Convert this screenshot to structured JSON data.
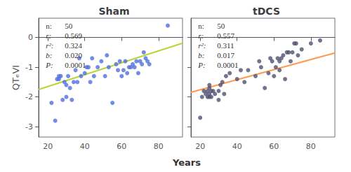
{
  "chart_data": [
    {
      "type": "scatter",
      "title": "Sham",
      "xlabel": "Years",
      "ylabel": "QTₑVI",
      "xlim": [
        15,
        93
      ],
      "ylim": [
        -3.35,
        0.65
      ],
      "xticks": [
        20,
        40,
        60,
        80
      ],
      "yticks": [
        -3,
        -2,
        -1,
        0
      ],
      "grid": false,
      "annotations": [
        "n: 50",
        "r: 0.569",
        "r²: 0.324",
        "b: 0.020",
        "P: 0.0001"
      ],
      "series": [
        {
          "type": "scatter",
          "x": [
            22,
            24,
            25,
            26,
            26,
            27,
            28,
            29,
            30,
            30,
            31,
            32,
            33,
            34,
            35,
            36,
            37,
            38,
            40,
            41,
            42,
            43,
            44,
            45,
            47,
            49,
            51,
            52,
            53,
            55,
            57,
            58,
            59,
            60,
            61,
            62,
            63,
            64,
            65,
            66,
            67,
            68,
            69,
            70,
            71,
            72,
            73,
            74,
            75,
            85
          ],
          "values": [
            -2.2,
            -2.8,
            -1.4,
            -1.4,
            -1.3,
            -1.3,
            -2.1,
            -1.5,
            -1.6,
            -2.0,
            -1.3,
            -1.7,
            -2.1,
            -1.5,
            -1.1,
            -1.5,
            -0.7,
            -1.3,
            -1.2,
            -1.0,
            -1.0,
            -1.5,
            -0.7,
            -1.3,
            -1.0,
            -0.8,
            -1.3,
            -0.6,
            -1.0,
            -2.2,
            -0.9,
            -1.1,
            -0.8,
            -1.3,
            -1.1,
            -0.8,
            -1.2,
            -1.0,
            -1.0,
            -0.9,
            -1.0,
            -0.8,
            -1.2,
            -0.8,
            -0.9,
            -0.5,
            -0.7,
            -0.8,
            -0.9,
            0.4
          ]
        },
        {
          "type": "line",
          "x": [
            15,
            93
          ],
          "values": [
            -1.75,
            -0.19
          ]
        }
      ]
    },
    {
      "type": "scatter",
      "title": "tDCS",
      "xlim": [
        15,
        93
      ],
      "ylim": [
        -3.35,
        0.65
      ],
      "xticks": [
        20,
        40,
        60,
        80
      ],
      "yticks": [
        -3,
        -2,
        -1,
        0
      ],
      "grid": false,
      "tick_labels": "x",
      "annotations": [
        "n: 50",
        "r: 0.557",
        "r²: 0.311",
        "b: 0.017",
        "P: 0.0001"
      ],
      "series": [
        {
          "type": "scatter",
          "x": [
            20,
            21,
            22,
            23,
            24,
            24,
            25,
            25,
            25,
            26,
            26,
            27,
            28,
            30,
            31,
            32,
            33,
            34,
            36,
            40,
            42,
            44,
            46,
            50,
            52,
            53,
            55,
            57,
            58,
            59,
            60,
            61,
            62,
            63,
            63,
            64,
            65,
            66,
            67,
            68,
            69,
            70,
            71,
            72,
            73,
            75,
            80,
            85,
            25,
            30
          ],
          "values": [
            -2.7,
            -2.0,
            -1.8,
            -1.9,
            -1.8,
            -2.0,
            -1.9,
            -2.0,
            -1.7,
            -1.8,
            -2.0,
            -1.8,
            -1.9,
            -1.8,
            -1.6,
            -1.5,
            -1.9,
            -1.3,
            -1.2,
            -1.4,
            -1.1,
            -1.5,
            -1.1,
            -1.3,
            -0.8,
            -1.0,
            -1.7,
            -1.2,
            -0.7,
            -0.8,
            -1.3,
            -1.0,
            -0.7,
            -1.1,
            -0.8,
            -0.7,
            -0.6,
            -1.4,
            -0.5,
            -0.5,
            -0.8,
            -0.5,
            -0.2,
            -0.2,
            -0.6,
            -0.4,
            -0.2,
            -0.1,
            -1.6,
            -2.1
          ]
        },
        {
          "type": "line",
          "x": [
            15,
            93
          ],
          "values": [
            -1.845,
            -0.519
          ]
        }
      ]
    }
  ]
}
